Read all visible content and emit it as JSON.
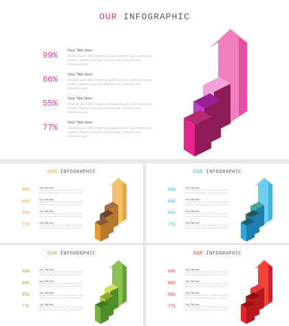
{
  "slides": [
    {
      "id": "main",
      "title_part1": "OUR",
      "title_part2": "INFOGRAPHIC",
      "accent": "#d63d9a",
      "colors": {
        "front": "#e8248e",
        "top": "#b72a70",
        "side": "#8e1c58",
        "arrow": "#ef7fbf",
        "arrowSide": "#e74ca3",
        "bar2": "#c03cc6",
        "bar2top": "#9a1f95",
        "bar3": "#f2a2d8"
      },
      "items": [
        {
          "pct": "99%",
          "title": "Your Title Here",
          "body": "Vivamus quam dolor, tempor ac gravida sit amet, porta fermentum magna. Aliquam accumsan commodo nisl, vel luctus nunc fermentum quis."
        },
        {
          "pct": "66%",
          "title": "Your Title Here",
          "body": "Vivamus quam dolor, tempor ac gravida sit amet, porta fermentum magna. Aliquam accumsan commodo nisl, vel luctus nunc fermentum quis."
        },
        {
          "pct": "55%",
          "title": "Your Title Here",
          "body": "Vivamus quam dolor, tempor ac gravida sit amet, porta fermentum magna. Aliquam accumsan commodo nisl, vel luctus nunc fermentum quis."
        },
        {
          "pct": "77%",
          "title": "Your Title Here",
          "body": "Vivamus quam dolor, tempor ac gravida sit amet, porta fermentum magna. Aliquam accumsan commodo nisl, vel luctus nunc fermentum quis."
        }
      ]
    },
    {
      "id": "orange",
      "title_part1": "OUR",
      "title_part2": "INFOGRAPHIC",
      "accent": "#e6a23c",
      "colors": {
        "front": "#e79b2a",
        "top": "#8a5a33",
        "side": "#b7772c",
        "arrow": "#f4c168",
        "arrowSide": "#e9a640",
        "bar2": "#8b5a3c",
        "bar2top": "#6a4026",
        "bar3": "#a86b45"
      },
      "items": [
        {
          "pct": "99%",
          "title": "Your Title Here",
          "body": "Vivamus quam dolor, tempor ac gravida sit amet, porta fermentum magna. Aliquam accumsan commodo nisl."
        },
        {
          "pct": "66%",
          "title": "Your Title Here",
          "body": "Vivamus quam dolor, tempor ac gravida sit amet, porta fermentum magna. Aliquam accumsan commodo nisl."
        },
        {
          "pct": "55%",
          "title": "Your Title Here",
          "body": "Vivamus quam dolor, tempor ac gravida sit amet, porta fermentum magna. Aliquam accumsan commodo nisl."
        },
        {
          "pct": "77%",
          "title": "Your Title Here",
          "body": "Vivamus quam dolor, tempor ac gravida sit amet, porta fermentum magna. Aliquam accumsan commodo nisl."
        }
      ]
    },
    {
      "id": "blue",
      "title_part1": "OUR",
      "title_part2": "INFOGRAPHIC",
      "accent": "#3bb3d6",
      "colors": {
        "front": "#2fa6da",
        "top": "#1c5f78",
        "side": "#1e7fae",
        "arrow": "#6ccff0",
        "arrowSide": "#3ab6e3",
        "bar2": "#2b7d86",
        "bar2top": "#1b5a60",
        "bar3": "#43a7a0"
      },
      "items": [
        {
          "pct": "99%",
          "title": "Your Title Here",
          "body": "Vivamus quam dolor, tempor ac gravida sit amet, porta fermentum magna. Aliquam accumsan commodo nisl."
        },
        {
          "pct": "66%",
          "title": "Your Title Here",
          "body": "Vivamus quam dolor, tempor ac gravida sit amet, porta fermentum magna. Aliquam accumsan commodo nisl."
        },
        {
          "pct": "55%",
          "title": "Your Title Here",
          "body": "Vivamus quam dolor, tempor ac gravida sit amet, porta fermentum magna. Aliquam accumsan commodo nisl."
        },
        {
          "pct": "77%",
          "title": "Your Title Here",
          "body": "Vivamus quam dolor, tempor ac gravida sit amet, porta fermentum magna. Aliquam accumsan commodo nisl."
        }
      ]
    },
    {
      "id": "green",
      "title_part1": "OUR",
      "title_part2": "INFOGRAPHIC",
      "accent": "#7cb342",
      "colors": {
        "front": "#78b33c",
        "top": "#3f7a22",
        "side": "#4f8f2a",
        "arrow": "#8cc152",
        "arrowSide": "#5ea434",
        "bar2": "#b8cf3e",
        "bar2top": "#8fa52a",
        "bar3": "#d3de5a"
      },
      "items": [
        {
          "pct": "99%",
          "title": "Your Title Here",
          "body": "Vivamus quam dolor, tempor ac gravida sit amet, porta fermentum magna. Aliquam accumsan commodo nisl."
        },
        {
          "pct": "66%",
          "title": "Your Title Here",
          "body": "Vivamus quam dolor, tempor ac gravida sit amet, porta fermentum magna. Aliquam accumsan commodo nisl."
        },
        {
          "pct": "55%",
          "title": "Your Title Here",
          "body": "Vivamus quam dolor, tempor ac gravida sit amet, porta fermentum magna. Aliquam accumsan commodo nisl."
        },
        {
          "pct": "77%",
          "title": "Your Title Here",
          "body": "Vivamus quam dolor, tempor ac gravida sit amet, porta fermentum magna. Aliquam accumsan commodo nisl."
        }
      ]
    },
    {
      "id": "red",
      "title_part1": "OUR",
      "title_part2": "INFOGRAPHIC",
      "accent": "#e53935",
      "colors": {
        "front": "#e8232a",
        "top": "#9e1318",
        "side": "#b8181f",
        "arrow": "#f44336",
        "arrowSide": "#d32026",
        "bar2": "#c9181e",
        "bar2top": "#8f1014",
        "bar3": "#e5393d"
      },
      "items": [
        {
          "pct": "99%",
          "title": "Your Title Here",
          "body": "Vivamus quam dolor, tempor ac gravida sit amet, porta fermentum magna. Aliquam accumsan commodo nisl."
        },
        {
          "pct": "66%",
          "title": "Your Title Here",
          "body": "Vivamus quam dolor, tempor ac gravida sit amet, porta fermentum magna. Aliquam accumsan commodo nisl."
        },
        {
          "pct": "55%",
          "title": "Your Title Here",
          "body": "Vivamus quam dolor, tempor ac gravida sit amet, porta fermentum magna. Aliquam accumsan commodo nisl."
        },
        {
          "pct": "77%",
          "title": "Your Title Here",
          "body": "Vivamus quam dolor, tempor ac gravida sit amet, porta fermentum magna. Aliquam accumsan commodo nisl."
        }
      ]
    }
  ]
}
